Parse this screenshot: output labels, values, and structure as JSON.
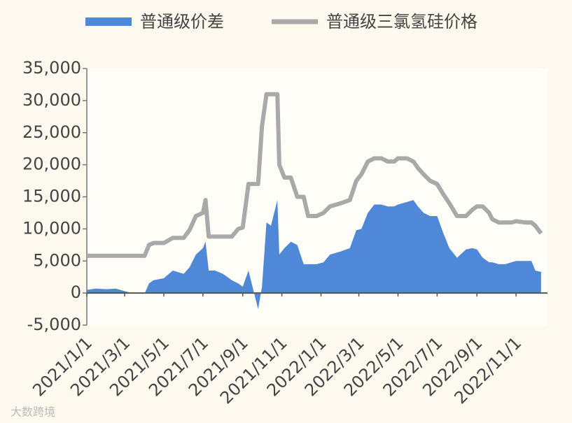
{
  "chart_data": {
    "type": "area-line",
    "x": [
      "2021/1/1",
      "2021/1/15",
      "2021/2/1",
      "2021/2/15",
      "2021/3/1",
      "2021/3/15",
      "2021/4/1",
      "2021/4/8",
      "2021/4/15",
      "2021/5/1",
      "2021/5/15",
      "2021/6/1",
      "2021/6/10",
      "2021/6/20",
      "2021/7/1",
      "2021/7/5",
      "2021/7/10",
      "2021/7/20",
      "2021/8/1",
      "2021/8/15",
      "2021/8/25",
      "2021/9/1",
      "2021/9/10",
      "2021/9/25",
      "2021/10/1",
      "2021/10/8",
      "2021/10/15",
      "2021/10/25",
      "2021/10/28",
      "2021/11/5",
      "2021/11/15",
      "2021/11/25",
      "2021/12/5",
      "2021/12/12",
      "2021/12/25",
      "2022/1/5",
      "2022/1/15",
      "2022/2/1",
      "2022/2/15",
      "2022/2/25",
      "2022/3/5",
      "2022/3/15",
      "2022/3/25",
      "2022/4/5",
      "2022/4/15",
      "2022/4/25",
      "2022/5/1",
      "2022/5/15",
      "2022/5/25",
      "2022/6/1",
      "2022/6/10",
      "2022/6/20",
      "2022/7/1",
      "2022/7/10",
      "2022/7/20",
      "2022/8/1",
      "2022/8/15",
      "2022/8/25",
      "2022/9/1",
      "2022/9/10",
      "2022/9/20",
      "2022/9/25",
      "2022/10/5",
      "2022/10/15",
      "2022/10/25",
      "2022/11/1",
      "2022/11/15",
      "2022/11/25",
      "2022/12/1",
      "2022/12/10"
    ],
    "series": [
      {
        "name": "普通级价差",
        "color": "#4f88d6",
        "kind": "area",
        "values": [
          500,
          700,
          600,
          700,
          300,
          -100,
          -100,
          1500,
          2000,
          2300,
          3500,
          3000,
          4000,
          6000,
          7000,
          8000,
          3500,
          3500,
          3000,
          2000,
          1500,
          1000,
          3500,
          -2500,
          1000,
          11000,
          10500,
          14500,
          6000,
          7000,
          8000,
          7500,
          4500,
          4500,
          4500,
          4800,
          6000,
          6500,
          7000,
          9800,
          10000,
          12500,
          13800,
          13800,
          13500,
          13500,
          13800,
          14200,
          14500,
          13500,
          12500,
          12000,
          12000,
          9500,
          7000,
          5500,
          6800,
          7000,
          6800,
          5500,
          4800,
          4800,
          4500,
          4500,
          4800,
          5000,
          5000,
          5000,
          3500,
          3300
        ]
      },
      {
        "name": "普通级三氯氢硅价格",
        "color": "#a9a9a9",
        "kind": "line",
        "values": [
          5800,
          5800,
          5800,
          5800,
          5800,
          5800,
          5800,
          7500,
          7800,
          7800,
          8600,
          8600,
          9800,
          12000,
          12500,
          14500,
          8800,
          8800,
          8800,
          8800,
          10000,
          10200,
          17000,
          17000,
          26000,
          31000,
          31000,
          31000,
          20000,
          18000,
          18000,
          15000,
          15000,
          12000,
          12000,
          12500,
          13500,
          14000,
          14500,
          17500,
          18500,
          20500,
          21000,
          21000,
          20500,
          20500,
          21000,
          21000,
          20500,
          19500,
          18500,
          17500,
          17000,
          15500,
          14000,
          12000,
          12000,
          13000,
          13500,
          13500,
          12500,
          11500,
          11000,
          11000,
          11000,
          11200,
          11000,
          11000,
          10500,
          9300
        ]
      }
    ],
    "xlim": [
      "2021/1/1",
      "2022/12/20"
    ],
    "xticks": [
      "2021/1/1",
      "2021/3/1",
      "2021/5/1",
      "2021/7/1",
      "2021/9/1",
      "2021/11/1",
      "2022/1/1",
      "2022/3/1",
      "2022/5/1",
      "2022/7/1",
      "2022/9/1",
      "2022/11/1"
    ],
    "ylim": [
      -5000,
      35000
    ],
    "yticks": [
      {
        "value": -5000,
        "label": "-5,000"
      },
      0,
      {
        "value": 5000,
        "label": "5,000"
      },
      {
        "value": 10000,
        "label": "10,000"
      },
      {
        "value": 15000,
        "label": "15,000"
      },
      {
        "value": 20000,
        "label": "20,000"
      },
      {
        "value": 25000,
        "label": "25,000"
      },
      {
        "value": 30000,
        "label": "30,000"
      },
      {
        "value": 35000,
        "label": "35,000"
      }
    ],
    "legend": "top",
    "watermark": "大数跨境"
  }
}
